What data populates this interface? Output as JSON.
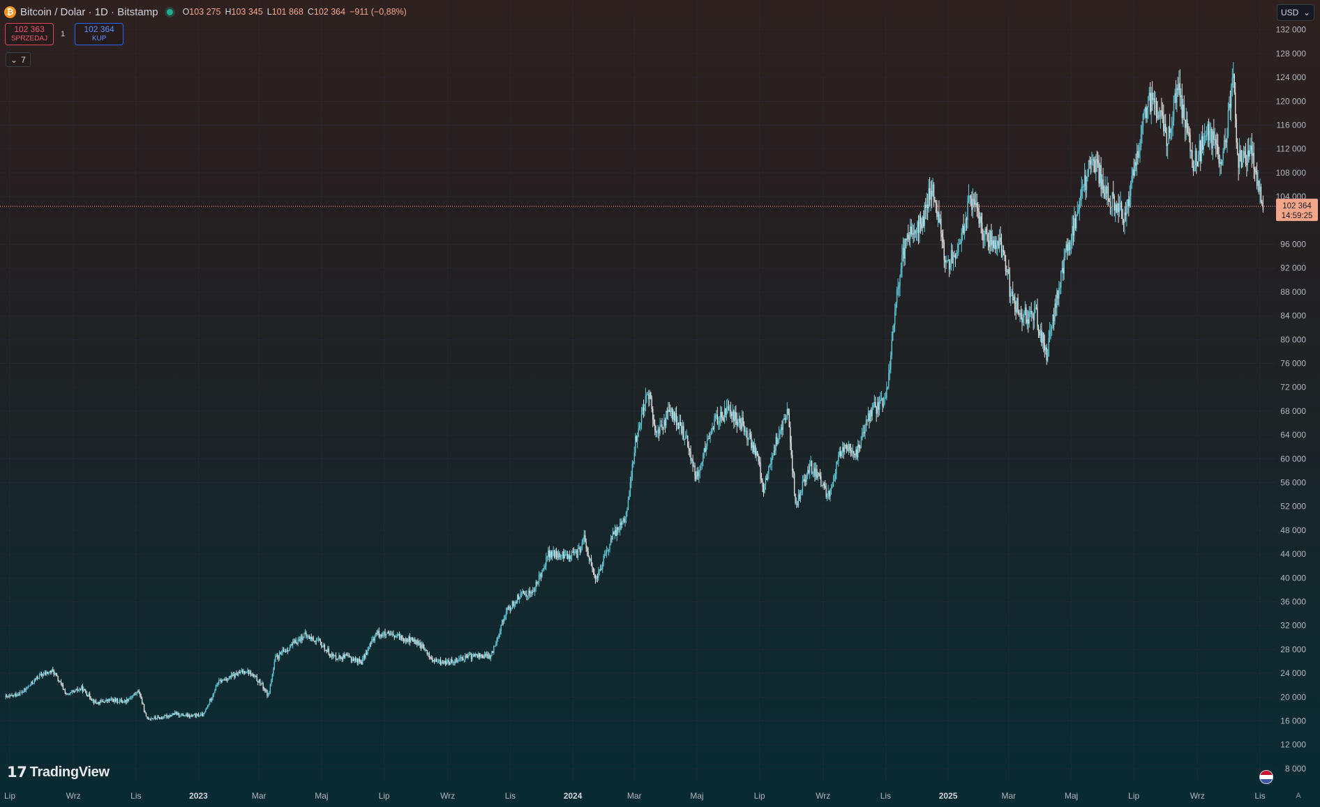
{
  "header": {
    "symbol_title": "Bitcoin / Dolar · 1D · Bitstamp",
    "ohlc": [
      {
        "label": "O",
        "value": "103 275"
      },
      {
        "label": "H",
        "value": "103 345"
      },
      {
        "label": "L",
        "value": "101 868"
      },
      {
        "label": "C",
        "value": "102 364"
      }
    ],
    "change": "−911 (−0,88%)"
  },
  "trade": {
    "sell_price": "102 363",
    "sell_label": "SPRZEDAJ",
    "spread": "1",
    "buy_price": "102 364",
    "buy_label": "KUP"
  },
  "indicators_toggle": "7",
  "currency": "USD",
  "logo_text": "TradingView",
  "price_tag": {
    "price": "102 364",
    "countdown": "14:59:25"
  },
  "colors": {
    "up": "#26a69a",
    "up_light": "#5ec8d8",
    "down": "#ef9a7a",
    "down_dark": "#e0e0e0",
    "price_tag_bg": "#f4a58a",
    "grid": "#2a2e39",
    "axis_text": "#b2b5be"
  },
  "chart_data": {
    "type": "line",
    "subtype": "candlestick",
    "title": "Bitcoin / Dolar · 1D · Bitstamp",
    "ylim": [
      6000,
      137000
    ],
    "y_ticks": [
      8000,
      12000,
      16000,
      20000,
      24000,
      28000,
      32000,
      36000,
      40000,
      44000,
      48000,
      52000,
      56000,
      60000,
      64000,
      68000,
      72000,
      76000,
      80000,
      84000,
      88000,
      92000,
      96000,
      104000,
      108000,
      112000,
      116000,
      120000,
      124000,
      128000,
      132000
    ],
    "y_tick_labels": [
      "8 000",
      "12 000",
      "16 000",
      "20 000",
      "24 000",
      "28 000",
      "32 000",
      "36 000",
      "40 000",
      "44 000",
      "48 000",
      "52 000",
      "56 000",
      "60 000",
      "64 000",
      "68 000",
      "72 000",
      "76 000",
      "80 000",
      "84 000",
      "88 000",
      "92 000",
      "96 000",
      "104 000",
      "108 000",
      "112 000",
      "116 000",
      "120 000",
      "124 000",
      "128 000",
      "132 000"
    ],
    "x_ticks": [
      {
        "label": "Lip",
        "date": "2022-07-01",
        "year": false
      },
      {
        "label": "Wrz",
        "date": "2022-09-01",
        "year": false
      },
      {
        "label": "Lis",
        "date": "2022-11-01",
        "year": false
      },
      {
        "label": "2023",
        "date": "2023-01-01",
        "year": true
      },
      {
        "label": "Mar",
        "date": "2023-03-01",
        "year": false
      },
      {
        "label": "Maj",
        "date": "2023-05-01",
        "year": false
      },
      {
        "label": "Lip",
        "date": "2023-07-01",
        "year": false
      },
      {
        "label": "Wrz",
        "date": "2023-09-01",
        "year": false
      },
      {
        "label": "Lis",
        "date": "2023-11-01",
        "year": false
      },
      {
        "label": "2024",
        "date": "2024-01-01",
        "year": true
      },
      {
        "label": "Mar",
        "date": "2024-03-01",
        "year": false
      },
      {
        "label": "Maj",
        "date": "2024-05-01",
        "year": false
      },
      {
        "label": "Lip",
        "date": "2024-07-01",
        "year": false
      },
      {
        "label": "Wrz",
        "date": "2024-09-01",
        "year": false
      },
      {
        "label": "Lis",
        "date": "2024-11-01",
        "year": false
      },
      {
        "label": "2025",
        "date": "2025-01-01",
        "year": true
      },
      {
        "label": "Mar",
        "date": "2025-03-01",
        "year": false
      },
      {
        "label": "Maj",
        "date": "2025-05-01",
        "year": false
      },
      {
        "label": "Lip",
        "date": "2025-07-01",
        "year": false
      },
      {
        "label": "Wrz",
        "date": "2025-09-01",
        "year": false
      },
      {
        "label": "Lis",
        "date": "2025-11-01",
        "year": false
      }
    ],
    "grid": true,
    "last_price": 102364,
    "series": [
      {
        "name": "BTCUSD",
        "points": [
          [
            "2022-07-01",
            20000
          ],
          [
            "2022-07-15",
            21000
          ],
          [
            "2022-07-29",
            23500
          ],
          [
            "2022-08-12",
            24400
          ],
          [
            "2022-08-26",
            20300
          ],
          [
            "2022-09-09",
            21500
          ],
          [
            "2022-09-23",
            19000
          ],
          [
            "2022-10-07",
            19500
          ],
          [
            "2022-10-21",
            19300
          ],
          [
            "2022-11-04",
            21000
          ],
          [
            "2022-11-11",
            16500
          ],
          [
            "2022-11-25",
            16500
          ],
          [
            "2022-12-09",
            17200
          ],
          [
            "2022-12-23",
            16800
          ],
          [
            "2023-01-06",
            17000
          ],
          [
            "2023-01-20",
            22500
          ],
          [
            "2023-02-03",
            23500
          ],
          [
            "2023-02-17",
            24500
          ],
          [
            "2023-03-03",
            22300
          ],
          [
            "2023-03-10",
            20200
          ],
          [
            "2023-03-17",
            26500
          ],
          [
            "2023-03-31",
            28400
          ],
          [
            "2023-04-14",
            30400
          ],
          [
            "2023-04-28",
            29300
          ],
          [
            "2023-05-12",
            26800
          ],
          [
            "2023-05-26",
            26700
          ],
          [
            "2023-06-09",
            25900
          ],
          [
            "2023-06-23",
            30700
          ],
          [
            "2023-07-07",
            30300
          ],
          [
            "2023-07-21",
            29900
          ],
          [
            "2023-08-04",
            29100
          ],
          [
            "2023-08-18",
            26000
          ],
          [
            "2023-09-01",
            25800
          ],
          [
            "2023-09-15",
            26600
          ],
          [
            "2023-09-29",
            27000
          ],
          [
            "2023-10-13",
            26800
          ],
          [
            "2023-10-27",
            34000
          ],
          [
            "2023-11-10",
            37000
          ],
          [
            "2023-11-24",
            37800
          ],
          [
            "2023-12-08",
            44000
          ],
          [
            "2023-12-22",
            43700
          ],
          [
            "2024-01-05",
            44000
          ],
          [
            "2024-01-12",
            46500
          ],
          [
            "2024-01-23",
            39500
          ],
          [
            "2024-02-09",
            47000
          ],
          [
            "2024-02-23",
            51000
          ],
          [
            "2024-03-01",
            62000
          ],
          [
            "2024-03-14",
            72000
          ],
          [
            "2024-03-22",
            64000
          ],
          [
            "2024-04-05",
            68000
          ],
          [
            "2024-04-19",
            64000
          ],
          [
            "2024-05-01",
            57000
          ],
          [
            "2024-05-17",
            66000
          ],
          [
            "2024-05-31",
            68000
          ],
          [
            "2024-06-14",
            66000
          ],
          [
            "2024-06-28",
            61000
          ],
          [
            "2024-07-05",
            55000
          ],
          [
            "2024-07-19",
            64000
          ],
          [
            "2024-07-29",
            68000
          ],
          [
            "2024-08-05",
            52000
          ],
          [
            "2024-08-19",
            59000
          ],
          [
            "2024-09-06",
            54000
          ],
          [
            "2024-09-20",
            62000
          ],
          [
            "2024-10-04",
            61000
          ],
          [
            "2024-10-18",
            68000
          ],
          [
            "2024-11-01",
            69500
          ],
          [
            "2024-11-12",
            88000
          ],
          [
            "2024-11-22",
            98000
          ],
          [
            "2024-12-06",
            99500
          ],
          [
            "2024-12-17",
            106000
          ],
          [
            "2024-12-30",
            93000
          ],
          [
            "2025-01-10",
            94500
          ],
          [
            "2025-01-22",
            104000
          ],
          [
            "2025-02-07",
            97000
          ],
          [
            "2025-02-21",
            96000
          ],
          [
            "2025-03-04",
            87000
          ],
          [
            "2025-03-14",
            84000
          ],
          [
            "2025-03-28",
            84000
          ],
          [
            "2025-04-07",
            77000
          ],
          [
            "2025-04-22",
            92000
          ],
          [
            "2025-05-09",
            103000
          ],
          [
            "2025-05-22",
            111000
          ],
          [
            "2025-06-05",
            104000
          ],
          [
            "2025-06-22",
            101000
          ],
          [
            "2025-07-03",
            109000
          ],
          [
            "2025-07-14",
            120000
          ],
          [
            "2025-07-28",
            118000
          ],
          [
            "2025-08-02",
            113000
          ],
          [
            "2025-08-13",
            123000
          ],
          [
            "2025-08-28",
            109000
          ],
          [
            "2025-09-12",
            115000
          ],
          [
            "2025-09-25",
            109000
          ],
          [
            "2025-10-06",
            124500
          ],
          [
            "2025-10-10",
            110000
          ],
          [
            "2025-10-24",
            111000
          ],
          [
            "2025-11-04",
            102364
          ]
        ]
      }
    ]
  }
}
